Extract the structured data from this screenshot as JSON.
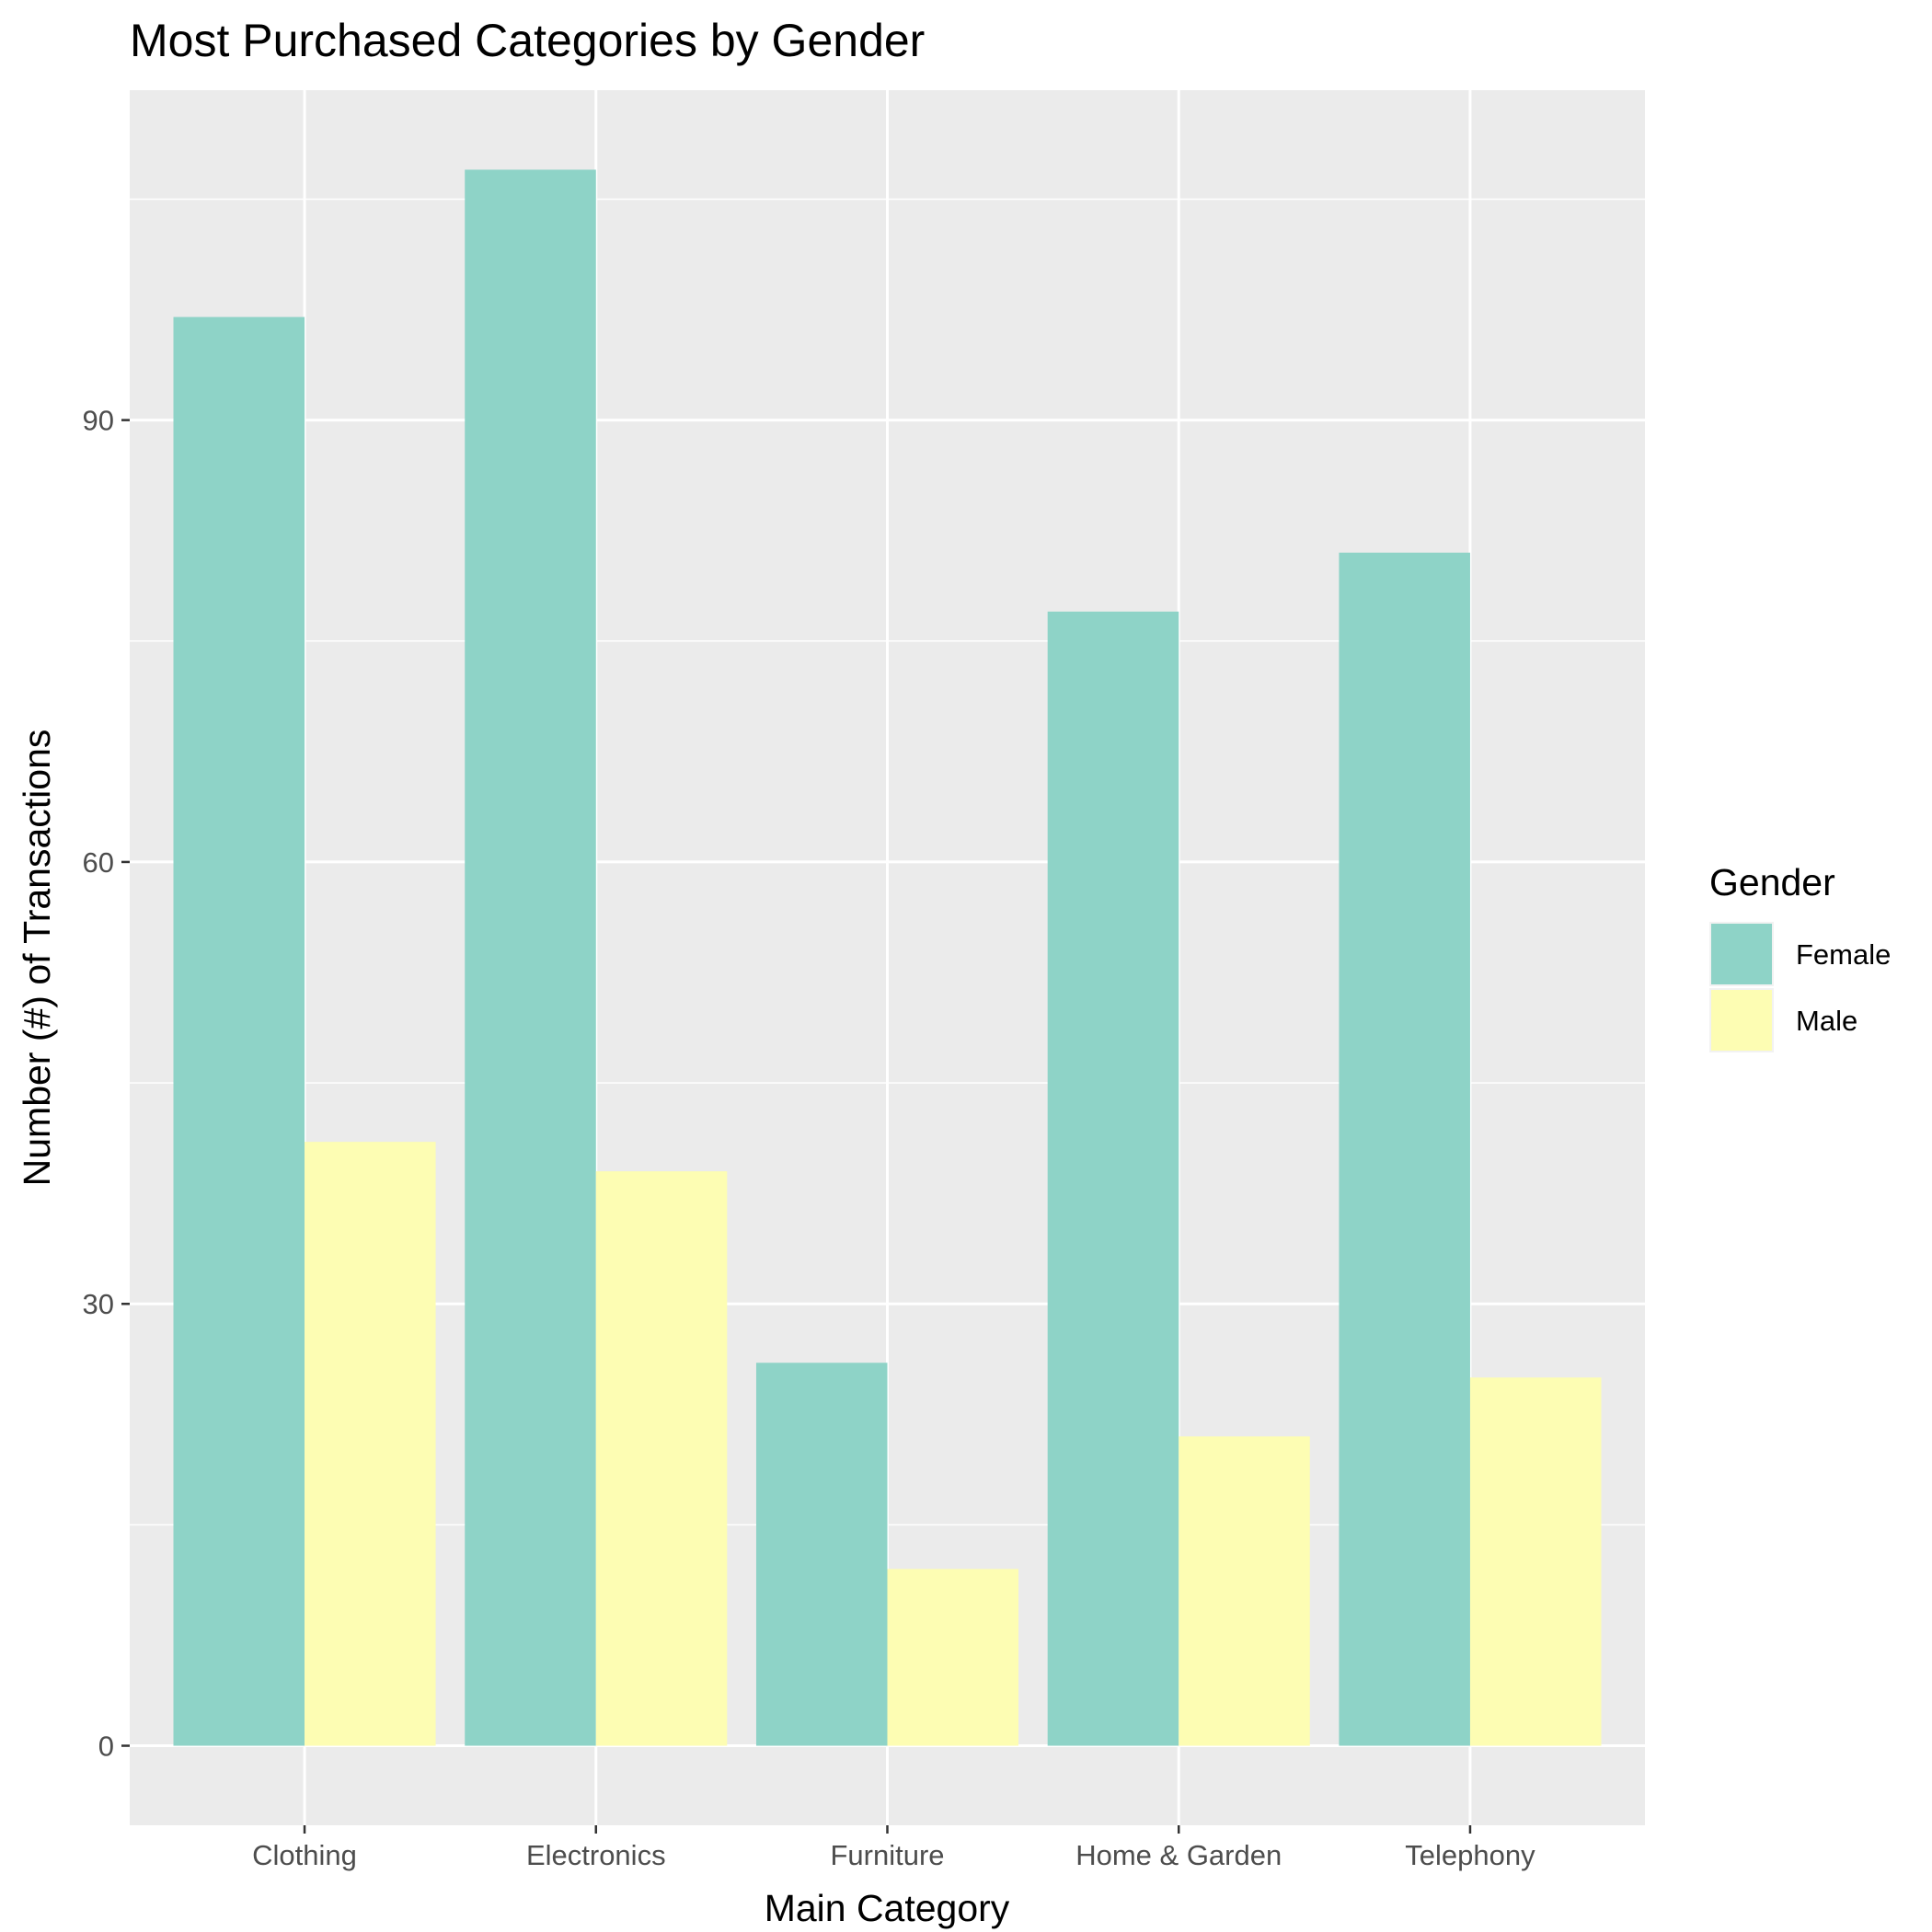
{
  "chart_data": {
    "type": "bar",
    "title": "Most Purchased Categories by Gender",
    "xlabel": "Main Category",
    "ylabel": "Number (#) of Transactions",
    "categories": [
      "Clothing",
      "Electronics",
      "Furniture",
      "Home & Garden",
      "Telephony"
    ],
    "series": [
      {
        "name": "Female",
        "values": [
          97,
          107,
          26,
          77,
          81
        ],
        "color": "#8ed3c7"
      },
      {
        "name": "Male",
        "values": [
          41,
          39,
          12,
          21,
          25
        ],
        "color": "#fdfdb3"
      }
    ],
    "ylim": [
      -5.4,
      112.4
    ],
    "yticks": [
      0,
      30,
      60,
      90
    ],
    "grid": true,
    "legend": {
      "title": "Gender",
      "placement": "right"
    },
    "panel_background": "#ebebeb",
    "grid_color": "#ffffff"
  }
}
